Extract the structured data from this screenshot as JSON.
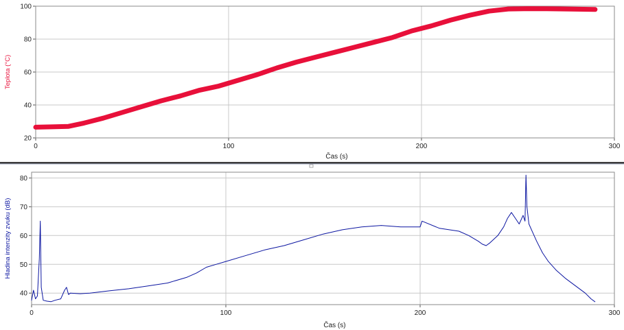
{
  "chart_data": [
    {
      "type": "line",
      "title": "",
      "xlabel": "Čas (s)",
      "ylabel": "Teplota (°C)",
      "xlim": [
        0,
        300
      ],
      "ylim": [
        20,
        100
      ],
      "xticks": [
        0,
        100,
        200,
        300
      ],
      "yticks": [
        20,
        40,
        60,
        80,
        100
      ],
      "grid": true,
      "series": [
        {
          "color": "#e8103a",
          "x": [
            0,
            8,
            17,
            25,
            35,
            45,
            55,
            65,
            75,
            85,
            95,
            105,
            115,
            125,
            135,
            145,
            155,
            165,
            175,
            185,
            195,
            205,
            215,
            225,
            235,
            245,
            255,
            265,
            275,
            290
          ],
          "y": [
            26.5,
            26.7,
            27,
            29,
            32,
            35.5,
            39,
            42.5,
            45.5,
            49,
            51.5,
            55,
            58.5,
            62.5,
            66,
            69,
            72,
            75,
            78,
            81,
            85,
            88,
            91.5,
            94.5,
            97,
            98.3,
            98.5,
            98.4,
            98.3,
            98
          ]
        }
      ]
    },
    {
      "type": "line",
      "title": "",
      "xlabel": "Čas (s)",
      "ylabel": "Hladina intenzity zvuku (dB)",
      "xlim": [
        0,
        300
      ],
      "ylim": [
        36,
        82
      ],
      "xticks": [
        0,
        100,
        200,
        300
      ],
      "yticks": [
        40,
        50,
        60,
        70,
        80
      ],
      "grid": true,
      "series": [
        {
          "color": "#0a14a0",
          "x": [
            0,
            1,
            2,
            3,
            4,
            4.5,
            5,
            6,
            8,
            10,
            12,
            15,
            17,
            18,
            19,
            20,
            25,
            30,
            40,
            50,
            60,
            70,
            80,
            85,
            90,
            95,
            100,
            110,
            120,
            130,
            140,
            150,
            160,
            170,
            180,
            190,
            200,
            201,
            210,
            220,
            225,
            230,
            232,
            234,
            236,
            240,
            243,
            245,
            247,
            249,
            251,
            253,
            254,
            254.5,
            255,
            256,
            258,
            260,
            263,
            266,
            270,
            275,
            280,
            285,
            288,
            290
          ],
          "y": [
            37.5,
            41,
            38,
            39,
            52,
            65,
            42,
            37.5,
            37.2,
            37,
            37.5,
            38,
            41,
            42,
            39.5,
            40,
            39.8,
            40,
            40.8,
            41.5,
            42.5,
            43.5,
            45.5,
            47,
            49,
            50,
            51,
            53,
            55,
            56.5,
            58.5,
            60.5,
            62,
            63,
            63.5,
            63,
            63,
            65,
            62.5,
            61.5,
            60,
            58,
            57,
            56.5,
            57.5,
            60,
            63,
            66,
            68,
            66,
            64,
            67,
            65,
            81,
            70,
            64,
            61,
            58,
            54,
            51,
            48,
            45,
            42.5,
            40,
            38,
            37
          ]
        }
      ]
    }
  ]
}
